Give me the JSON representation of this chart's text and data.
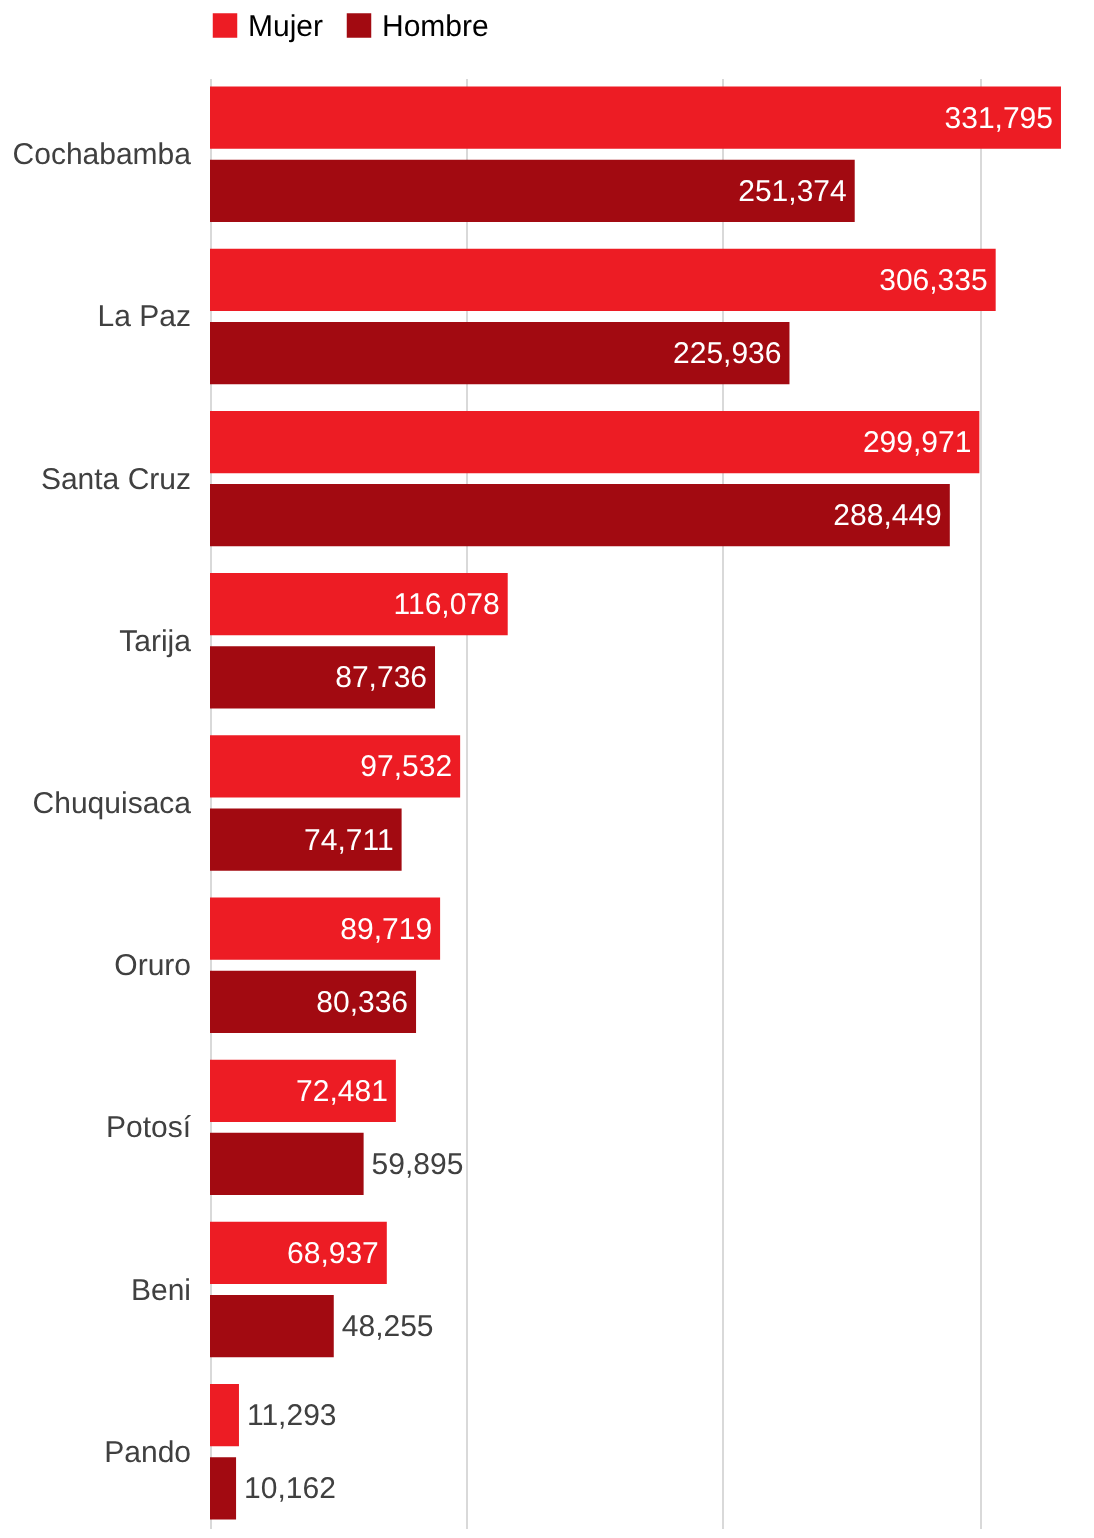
{
  "chart_data": {
    "type": "bar",
    "orientation": "horizontal",
    "categories": [
      "Cochabamba",
      "La Paz",
      "Santa Cruz",
      "Tarija",
      "Chuquisaca",
      "Oruro",
      "Potosí",
      "Beni",
      "Pando"
    ],
    "series": [
      {
        "name": "Mujer",
        "color": "#ed1c24",
        "values": [
          331795,
          306335,
          299971,
          116078,
          97532,
          89719,
          72481,
          68937,
          11293
        ],
        "value_labels": [
          "331,795",
          "306,335",
          "299,971",
          "116,078",
          "97,532",
          "89,719",
          "72,481",
          "68,937",
          "11,293"
        ]
      },
      {
        "name": "Hombre",
        "color": "#a20a11",
        "values": [
          251374,
          225936,
          288449,
          87736,
          74711,
          80336,
          59895,
          48255,
          10162
        ],
        "value_labels": [
          "251,374",
          "225,936",
          "288,449",
          "87,736",
          "74,711",
          "80,336",
          "59,895",
          "48,255",
          "10,162"
        ]
      }
    ],
    "tick_labels": "y",
    "grid": "x",
    "legend": "top"
  }
}
